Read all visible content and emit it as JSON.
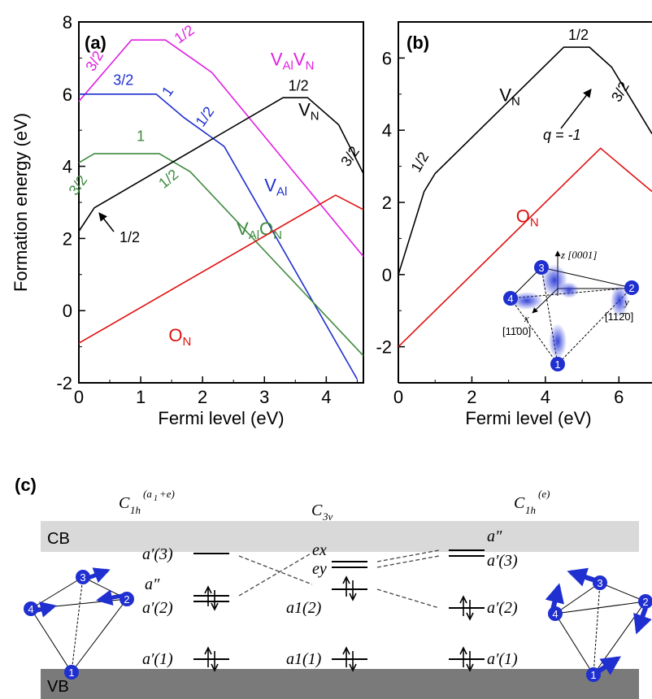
{
  "panel_a": {
    "label": "(a)",
    "xlabel": "Fermi level (eV)",
    "ylabel": "Formation energy (eV)",
    "xlim": [
      0,
      4.6
    ],
    "ylim": [
      -2,
      8
    ],
    "xticks": [
      "0",
      "1",
      "2",
      "3",
      "4"
    ],
    "yticks": [
      "-2",
      "0",
      "2",
      "4",
      "6",
      "8"
    ],
    "series": [
      {
        "name": "VAlVN",
        "color": "#e020e0",
        "points": [
          [
            0,
            5.8
          ],
          [
            0.85,
            7.5
          ],
          [
            1.4,
            7.5
          ],
          [
            2.15,
            6.6
          ],
          [
            4.6,
            1.5
          ]
        ],
        "labels": [
          {
            "t": "3/2",
            "x": 0.32,
            "y": 6.85,
            "rot": -60
          },
          {
            "t": "1/2",
            "x": 1.75,
            "y": 7.55,
            "rot": -35
          }
        ],
        "name_label": {
          "main": "V",
          "sub1": "Al",
          "mid": "V",
          "sub2": "N",
          "x": 3.1,
          "y": 6.8
        }
      },
      {
        "name": "VAl",
        "color": "#1f2fd0",
        "points": [
          [
            0,
            6.0
          ],
          [
            1.25,
            6.0
          ],
          [
            1.7,
            5.35
          ],
          [
            2.35,
            4.55
          ],
          [
            4.5,
            -1.9
          ]
        ],
        "labels": [
          {
            "t": "3/2",
            "x": 0.72,
            "y": 6.25,
            "rot": 0
          },
          {
            "t": "1",
            "x": 1.5,
            "y": 6.0,
            "rot": -55
          },
          {
            "t": "1/2",
            "x": 2.1,
            "y": 5.3,
            "rot": -55
          }
        ],
        "name_label": {
          "main": "V",
          "sub1": "Al",
          "x": 3.0,
          "y": 3.3
        }
      },
      {
        "name": "VAlON",
        "color": "#3f8a3f",
        "points": [
          [
            0,
            4.1
          ],
          [
            0.25,
            4.35
          ],
          [
            1.3,
            4.35
          ],
          [
            1.8,
            3.85
          ],
          [
            4.6,
            -1.25
          ]
        ],
        "labels": [
          {
            "t": "3/2",
            "x": 0.05,
            "y": 3.4,
            "rot": -55
          },
          {
            "t": "1",
            "x": 1.0,
            "y": 4.7,
            "rot": 0
          },
          {
            "t": "1/2",
            "x": 1.5,
            "y": 3.55,
            "rot": -40
          }
        ],
        "name_label": {
          "main": "V",
          "sub1": "Al",
          "mid": "O",
          "sub2": "N",
          "x": 2.55,
          "y": 2.1
        }
      },
      {
        "name": "VN",
        "color": "#000000",
        "points": [
          [
            0,
            2.2
          ],
          [
            0.25,
            2.85
          ],
          [
            3.3,
            5.9
          ],
          [
            3.7,
            5.9
          ],
          [
            4.2,
            5.15
          ],
          [
            4.6,
            3.8
          ]
        ],
        "labels": [
          {
            "t": "1/2",
            "x": 3.55,
            "y": 6.1,
            "rot": 0
          },
          {
            "t": "3/2",
            "x": 4.45,
            "y": 4.2,
            "rot": -55
          }
        ],
        "name_label": {
          "main": "V",
          "sub1": "N",
          "x": 3.55,
          "y": 5.4
        }
      },
      {
        "name": "ON",
        "color": "#e01010",
        "points": [
          [
            0,
            -0.9
          ],
          [
            4.15,
            3.2
          ],
          [
            4.6,
            2.8
          ]
        ],
        "labels": [],
        "name_label": {
          "main": "O",
          "sub1": "N",
          "x": 1.45,
          "y": -0.85
        }
      }
    ],
    "arrow_label": {
      "t": "1/2",
      "x": 0.75,
      "y": 1.95
    }
  },
  "panel_b": {
    "label": "(b)",
    "xlabel": "Fermi level (eV)",
    "xlim": [
      0,
      6.9
    ],
    "ylim": [
      -3,
      7
    ],
    "xticks": [
      "0",
      "2",
      "4",
      "6"
    ],
    "yticks": [
      "-2",
      "0",
      "2",
      "4",
      "6"
    ],
    "series": [
      {
        "name": "VN",
        "color": "#000000",
        "points": [
          [
            0,
            0
          ],
          [
            0.7,
            2.3
          ],
          [
            1.0,
            2.8
          ],
          [
            4.5,
            6.3
          ],
          [
            5.2,
            6.3
          ],
          [
            5.8,
            5.75
          ],
          [
            6.9,
            3.9
          ]
        ],
        "labels": [
          {
            "t": "1/2",
            "x": 0.7,
            "y": 3.05,
            "rot": -60
          },
          {
            "t": "1/2",
            "x": 4.9,
            "y": 6.5,
            "rot": 0
          },
          {
            "t": "3/2",
            "x": 6.15,
            "y": 5.0,
            "rot": -60
          }
        ],
        "name_label": {
          "main": "V",
          "sub1": "N",
          "x": 2.75,
          "y": 4.8
        }
      },
      {
        "name": "ON",
        "color": "#e01010",
        "points": [
          [
            0,
            -2
          ],
          [
            5.5,
            3.5
          ],
          [
            6.9,
            2.3
          ]
        ],
        "labels": [],
        "name_label": {
          "main": "O",
          "sub1": "N",
          "x": 3.2,
          "y": 1.45
        }
      }
    ],
    "q_label": "q = -1",
    "inset": {
      "axis_z": "z [0001]",
      "axis_y": "y",
      "axis_y_dir": "[112̄0]",
      "axis_x": "x",
      "axis_x_dir": "[11̄00]",
      "atoms": [
        "1",
        "2",
        "3",
        "4"
      ]
    }
  },
  "panel_c": {
    "label": "(c)",
    "cb": "CB",
    "vb": "VB",
    "col_left_title": "C1h(a1+e)",
    "col_mid_title": "C3v",
    "col_right_title": "C1h(e)",
    "left_levels": {
      "a3": "a′(3)",
      "a2": "a″",
      "a2b": "a′(2)",
      "a1": "a′(1)"
    },
    "mid_levels": {
      "ex": "ex",
      "ey": "ey",
      "a12": "a1(2)",
      "a11": "a1(1)"
    },
    "right_levels": {
      "a2": "a″",
      "a3": "a′(3)",
      "a2b": "a′(2)",
      "a1": "a′(1)"
    },
    "atoms": [
      "1",
      "2",
      "3",
      "4"
    ],
    "colors": {
      "atom": "#1f2fd0",
      "cb": "#d9d9d9",
      "vb": "#7a7a7a"
    }
  }
}
